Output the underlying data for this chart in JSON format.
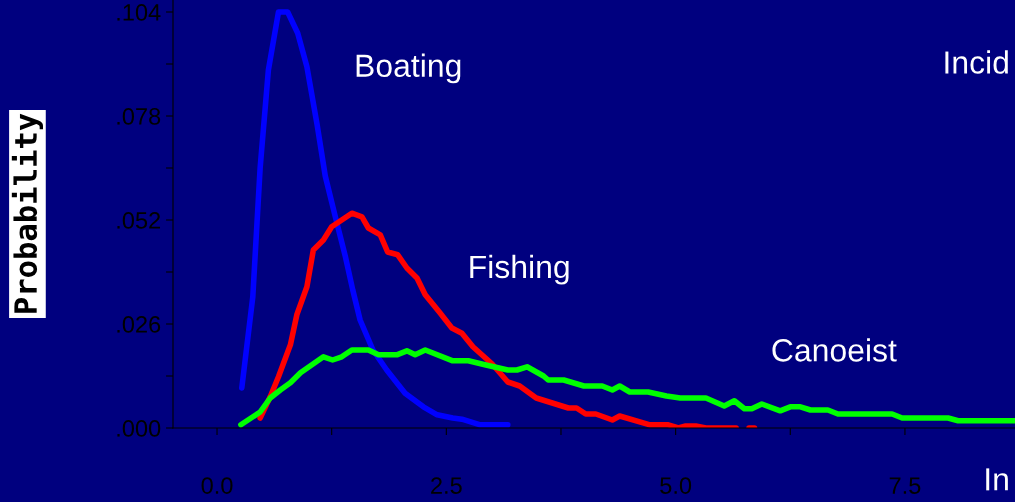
{
  "chart_data": {
    "type": "line",
    "ylabel": "Probability",
    "xlabel": "In",
    "annotations": [
      "Incid"
    ],
    "xlim": [
      -0.48,
      8.7
    ],
    "ylim": [
      0,
      0.107
    ],
    "xticks": [
      {
        "value": 0,
        "label": "0.0"
      },
      {
        "value": 1.25,
        "label": null
      },
      {
        "value": 2.5,
        "label": "2.5"
      },
      {
        "value": 3.75,
        "label": null
      },
      {
        "value": 5,
        "label": "5.0"
      },
      {
        "value": 6.25,
        "label": null
      },
      {
        "value": 7.5,
        "label": "7.5"
      }
    ],
    "yticks": [
      {
        "value": 0,
        "label": ".000"
      },
      {
        "value": 0.013,
        "label": null
      },
      {
        "value": 0.026,
        "label": ".026"
      },
      {
        "value": 0.039,
        "label": null
      },
      {
        "value": 0.052,
        "label": ".052"
      },
      {
        "value": 0.065,
        "label": null
      },
      {
        "value": 0.078,
        "label": ".078"
      },
      {
        "value": 0.091,
        "label": null
      },
      {
        "value": 0.104,
        "label": ".104"
      }
    ],
    "grid": false,
    "legend": false,
    "marker": "none",
    "line_style": "solid",
    "series": [
      {
        "name": "Boating",
        "color": "#0000ff",
        "x": [
          0.27,
          0.39,
          0.47,
          0.56,
          0.67,
          0.77,
          0.88,
          0.98,
          1.09,
          1.18,
          1.29,
          1.4,
          1.48,
          1.56,
          1.7,
          1.85,
          2.05,
          2.25,
          2.4,
          2.57,
          2.67,
          2.87,
          3.17
        ],
        "values": [
          0.01,
          0.0328,
          0.065,
          0.0895,
          0.104,
          0.104,
          0.0987,
          0.0903,
          0.076,
          0.063,
          0.0528,
          0.0428,
          0.0345,
          0.027,
          0.0195,
          0.0145,
          0.0087,
          0.0053,
          0.0033,
          0.0025,
          0.0022,
          0.0008,
          0.0008
        ]
      },
      {
        "name": "Fishing",
        "color": "#ff0000",
        "x": [
          0.47,
          0.58,
          0.67,
          0.8,
          0.87,
          0.98,
          1.05,
          1.16,
          1.25,
          1.36,
          1.47,
          1.58,
          1.65,
          1.78,
          1.86,
          1.97,
          2.07,
          2.18,
          2.27,
          2.43,
          2.56,
          2.67,
          2.79,
          3.0,
          3.17,
          3.3,
          3.48,
          3.83,
          3.92,
          4.02,
          4.13,
          4.31,
          4.39,
          4.72,
          4.92,
          5.03,
          5.11,
          5.22,
          5.33,
          5.66,
          5.74,
          5.8,
          5.86
        ],
        "values": [
          0.0025,
          0.0078,
          0.0128,
          0.0208,
          0.0283,
          0.0353,
          0.0445,
          0.047,
          0.0503,
          0.052,
          0.0537,
          0.0528,
          0.05,
          0.0483,
          0.044,
          0.0433,
          0.04,
          0.0375,
          0.0333,
          0.0288,
          0.025,
          0.0237,
          0.0203,
          0.016,
          0.0115,
          0.0105,
          0.0075,
          0.005,
          0.005,
          0.0035,
          0.0035,
          0.002,
          0.003,
          0.0008,
          0.0008,
          0.0,
          0.0005,
          0.0005,
          0.0,
          0.0,
          null,
          0.0,
          0.0
        ]
      },
      {
        "name": "Canoeist",
        "color": "#00ff00",
        "x": [
          0.26,
          0.47,
          0.58,
          0.69,
          0.8,
          0.91,
          1.16,
          1.26,
          1.36,
          1.47,
          1.65,
          1.76,
          1.96,
          2.07,
          2.16,
          2.27,
          2.57,
          2.74,
          2.92,
          3.17,
          3.27,
          3.38,
          3.56,
          3.61,
          3.78,
          4.0,
          4.2,
          4.31,
          4.39,
          4.5,
          4.7,
          4.9,
          5.05,
          5.33,
          5.53,
          5.64,
          5.75,
          5.83,
          5.94,
          6.14,
          6.25,
          6.36,
          6.47,
          6.66,
          6.77,
          7.36,
          7.47,
          7.97,
          8.08,
          8.7
        ],
        "values": [
          0.0008,
          0.004,
          0.0075,
          0.0095,
          0.0113,
          0.0138,
          0.0178,
          0.017,
          0.0178,
          0.0195,
          0.0195,
          0.0183,
          0.0183,
          0.0193,
          0.0183,
          0.0195,
          0.0168,
          0.0168,
          0.0158,
          0.0145,
          0.0145,
          0.0153,
          0.013,
          0.012,
          0.012,
          0.0105,
          0.0105,
          0.0095,
          0.0105,
          0.009,
          0.009,
          0.008,
          0.0075,
          0.0075,
          0.0055,
          0.0068,
          0.0048,
          0.0048,
          0.006,
          0.0043,
          0.0053,
          0.0053,
          0.0045,
          0.0045,
          0.0035,
          0.0035,
          0.0025,
          0.0025,
          0.0018,
          0.0018
        ]
      }
    ]
  }
}
